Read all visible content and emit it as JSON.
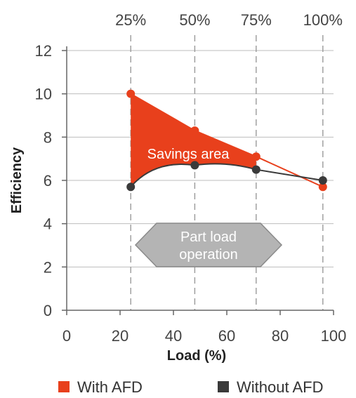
{
  "chart_data": {
    "type": "line",
    "xlabel": "Load (%)",
    "ylabel": "Efficiency",
    "xlim": [
      0,
      100
    ],
    "ylim": [
      0,
      12
    ],
    "xticks": [
      0,
      20,
      40,
      60,
      80,
      100
    ],
    "yticks": [
      0,
      2,
      4,
      6,
      8,
      10,
      12
    ],
    "top_ticks": [
      {
        "x": 24,
        "label": "25%"
      },
      {
        "x": 48,
        "label": "50%"
      },
      {
        "x": 71,
        "label": "75%"
      },
      {
        "x": 96,
        "label": "100%"
      }
    ],
    "series": [
      {
        "name": "With AFD",
        "color": "#e8401c",
        "points": [
          [
            24,
            10.0
          ],
          [
            48,
            8.3
          ],
          [
            71,
            7.1
          ],
          [
            96,
            5.7
          ]
        ]
      },
      {
        "name": "Without AFD",
        "color": "#3a3a3a",
        "points": [
          [
            24,
            5.7
          ],
          [
            48,
            6.7
          ],
          [
            71,
            6.5
          ],
          [
            96,
            6.0
          ]
        ]
      }
    ],
    "annotations": {
      "savings": "Savings area",
      "partload_line1": "Part load",
      "partload_line2": "operation"
    },
    "grid": "vertical dashed lines at top tick positions; solid horizontal gridlines",
    "legend_position": "bottom"
  }
}
